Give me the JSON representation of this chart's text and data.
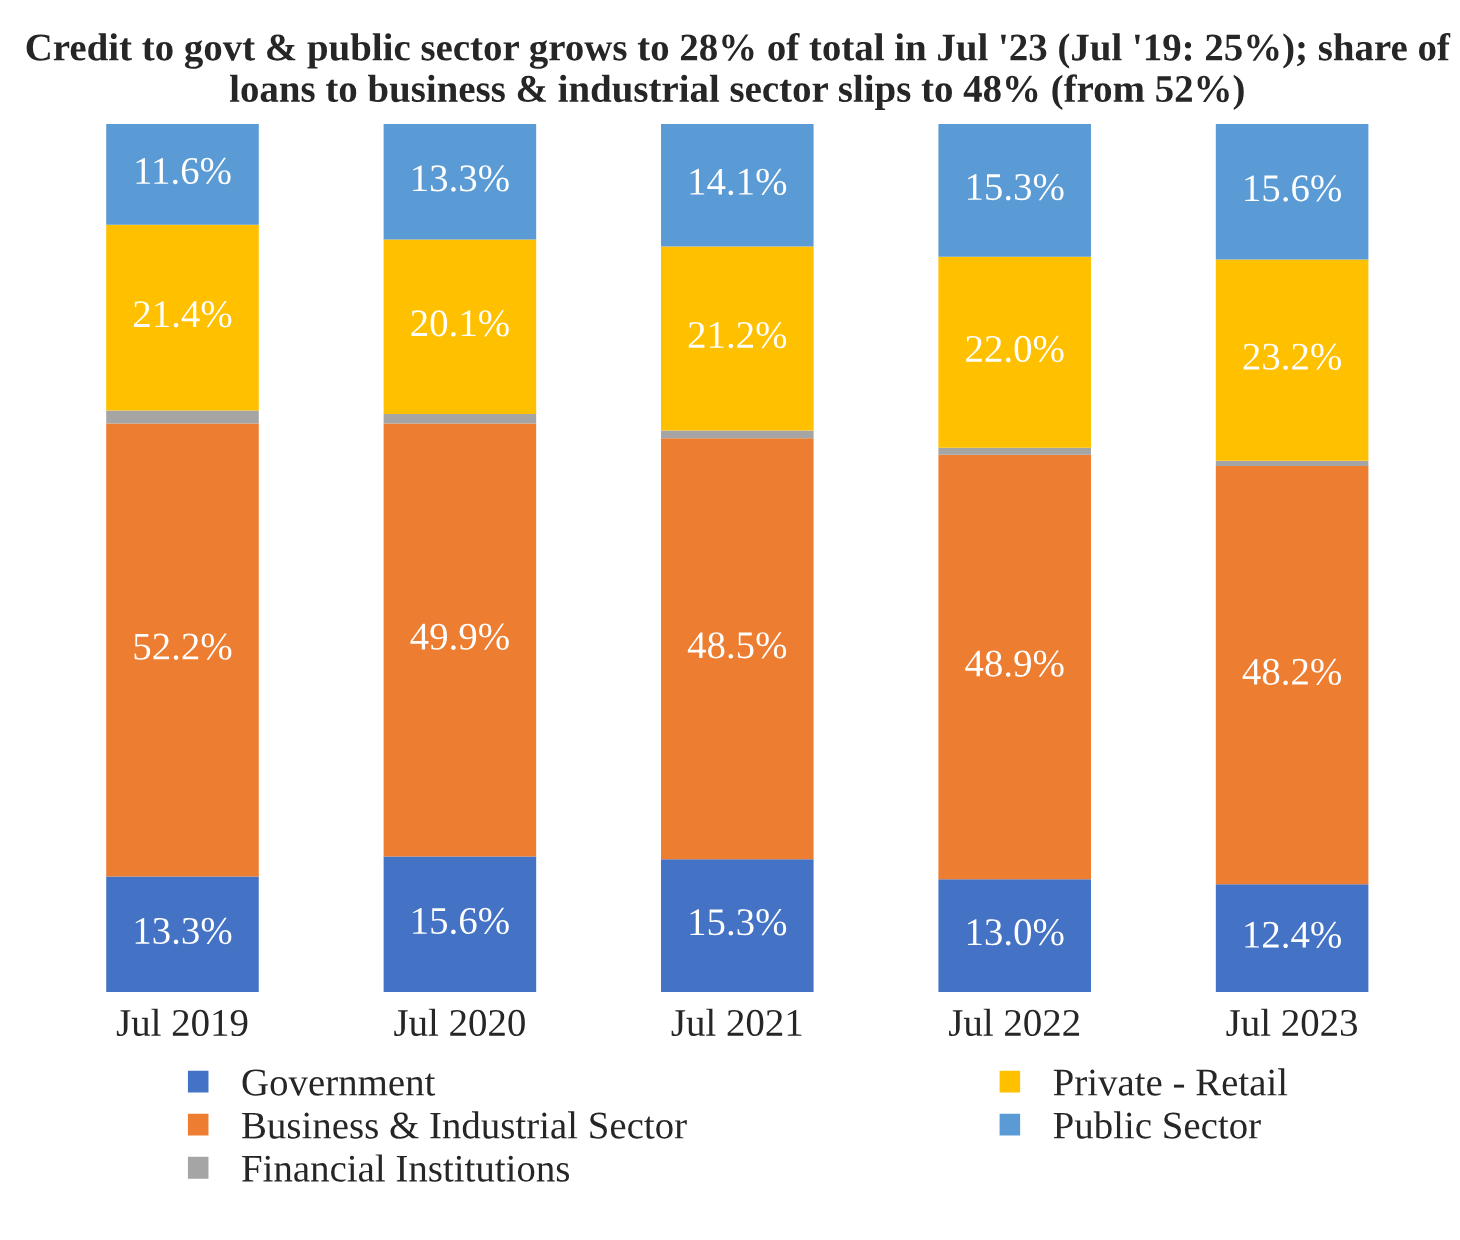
{
  "chart_data": {
    "type": "bar",
    "stacked": true,
    "title": "Credit to govt & public sector grows to 28% of total in Jul '23 (Jul '19: 25%); share of loans to business & industrial sector slips to 48% (from 52%)",
    "categories": [
      "Jul 2019",
      "Jul 2020",
      "Jul 2021",
      "Jul 2022",
      "Jul 2023"
    ],
    "ylim": [
      0,
      100
    ],
    "tick_labels": "x",
    "grid": false,
    "legend": "bottom",
    "series": [
      {
        "name": "Government",
        "color": "#4472c4",
        "values": [
          13.3,
          15.6,
          15.3,
          13.0,
          12.4
        ],
        "value_labels": [
          "13.3%",
          "15.6%",
          "15.3%",
          "13.0%",
          "12.4%"
        ]
      },
      {
        "name": "Business & Industrial Sector",
        "color": "#ed7d31",
        "values": [
          52.2,
          49.9,
          48.5,
          48.9,
          48.2
        ],
        "value_labels": [
          "52.2%",
          "49.9%",
          "48.5%",
          "48.9%",
          "48.2%"
        ]
      },
      {
        "name": "Financial Institutions",
        "color": "#a5a5a5",
        "values": [
          1.5,
          1.1,
          0.9,
          0.8,
          0.6
        ],
        "value_labels": [
          null,
          null,
          null,
          null,
          null
        ]
      },
      {
        "name": "Private - Retail",
        "color": "#ffc000",
        "values": [
          21.4,
          20.1,
          21.2,
          22.0,
          23.2
        ],
        "value_labels": [
          "21.4%",
          "20.1%",
          "21.2%",
          "22.0%",
          "23.2%"
        ]
      },
      {
        "name": "Public Sector",
        "color": "#5b9bd5",
        "values": [
          11.6,
          13.3,
          14.1,
          15.3,
          15.6
        ],
        "value_labels": [
          "11.6%",
          "13.3%",
          "14.1%",
          "15.3%",
          "15.6%"
        ]
      }
    ]
  }
}
